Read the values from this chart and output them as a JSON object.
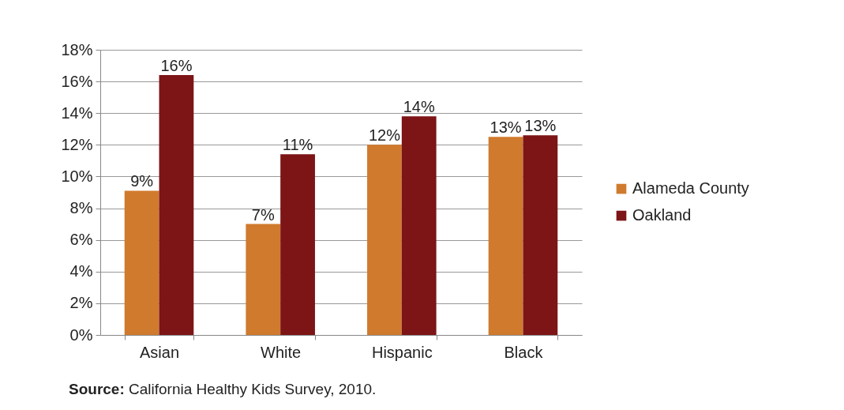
{
  "chart_data": {
    "type": "bar",
    "categories": [
      "Asian",
      "White",
      "Hispanic",
      "Black"
    ],
    "series": [
      {
        "name": "Alameda County",
        "color": "#d07a2e",
        "values": [
          9.1,
          7.0,
          12.0,
          12.5
        ],
        "value_labels": [
          "9%",
          "7%",
          "12%",
          "13%"
        ]
      },
      {
        "name": "Oakland",
        "color": "#7d1416",
        "values": [
          16.4,
          11.4,
          13.8,
          12.6
        ],
        "value_labels": [
          "16%",
          "11%",
          "14%",
          "13%"
        ]
      }
    ],
    "ylim": [
      0,
      18
    ],
    "yticks": [
      {
        "value": 0,
        "label": "0%"
      },
      {
        "value": 2,
        "label": "2%"
      },
      {
        "value": 4,
        "label": "4%"
      },
      {
        "value": 6,
        "label": "6%"
      },
      {
        "value": 8,
        "label": "8%"
      },
      {
        "value": 10,
        "label": "10%"
      },
      {
        "value": 12,
        "label": "12%"
      },
      {
        "value": 14,
        "label": "14%"
      },
      {
        "value": 16,
        "label": "16%"
      },
      {
        "value": 18,
        "label": "18%"
      }
    ],
    "grid": "y",
    "legend": "right",
    "annotations": [
      "Source: California Healthy Kids Survey, 2010."
    ]
  }
}
